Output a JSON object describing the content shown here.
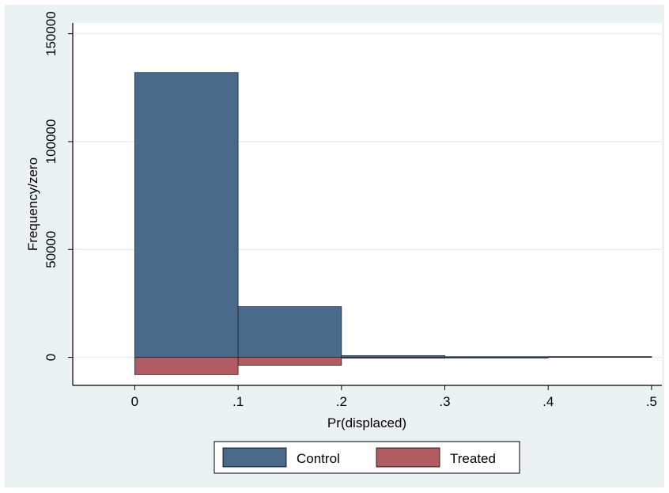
{
  "chart_data": {
    "type": "bar",
    "subtype": "mirrored-histogram",
    "xlabel": "Pr(displaced)",
    "ylabel": "Frequency/zero",
    "xlim": [
      -0.06,
      0.51
    ],
    "ylim": [
      -13000,
      155000
    ],
    "xticks": [
      {
        "value": 0.0,
        "label": "0"
      },
      {
        "value": 0.1,
        "label": ".1"
      },
      {
        "value": 0.2,
        "label": ".2"
      },
      {
        "value": 0.3,
        "label": ".3"
      },
      {
        "value": 0.4,
        "label": ".4"
      },
      {
        "value": 0.5,
        "label": ".5"
      }
    ],
    "yticks": [
      {
        "value": 0,
        "label": "0"
      },
      {
        "value": 50000,
        "label": "50000"
      },
      {
        "value": 100000,
        "label": "100000"
      },
      {
        "value": 150000,
        "label": "150000"
      }
    ],
    "grid": true,
    "legend_position": "bottom",
    "bins": [
      [
        0.0,
        0.1
      ],
      [
        0.1,
        0.2
      ],
      [
        0.2,
        0.3
      ],
      [
        0.3,
        0.4
      ],
      [
        0.4,
        0.5
      ]
    ],
    "series": [
      {
        "name": "Control",
        "color": "#4a6a8c",
        "values": [
          132000,
          23500,
          800,
          200,
          100
        ]
      },
      {
        "name": "Treated",
        "color": "#b05c62",
        "values": [
          -8000,
          -3700,
          -400,
          -100,
          0
        ]
      }
    ]
  }
}
